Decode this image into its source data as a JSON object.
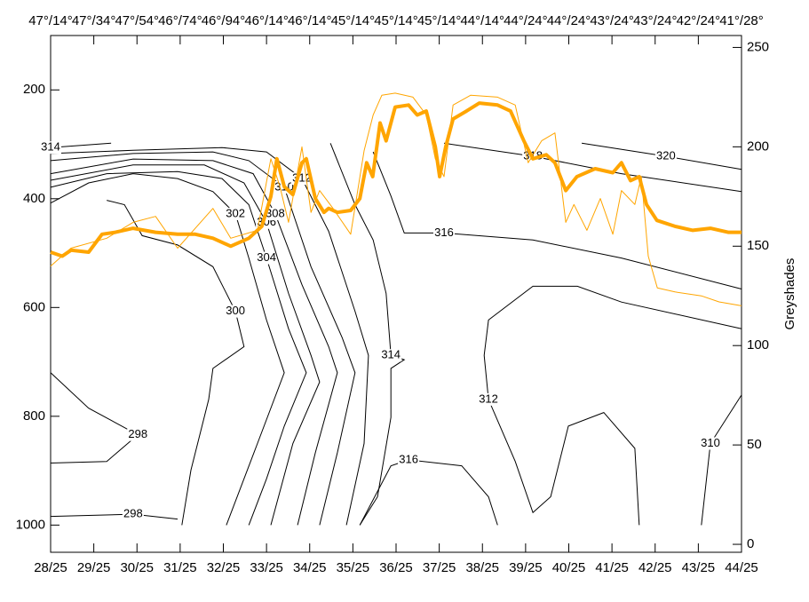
{
  "chart_data": {
    "type": "contour-line",
    "xlim": [
      28,
      44
    ],
    "xticks": [
      {
        "value": 28,
        "label": "28/25"
      },
      {
        "value": 29,
        "label": "29/25"
      },
      {
        "value": 30,
        "label": "30/25"
      },
      {
        "value": 31,
        "label": "31/25"
      },
      {
        "value": 32,
        "label": "32/25"
      },
      {
        "value": 33,
        "label": "33/25"
      },
      {
        "value": 34,
        "label": "34/25"
      },
      {
        "value": 35,
        "label": "35/25"
      },
      {
        "value": 36,
        "label": "36/25"
      },
      {
        "value": 37,
        "label": "37/25"
      },
      {
        "value": 38,
        "label": "38/25"
      },
      {
        "value": 39,
        "label": "39/25"
      },
      {
        "value": 40,
        "label": "40/25"
      },
      {
        "value": 41,
        "label": "41/25"
      },
      {
        "value": 42,
        "label": "42/25"
      },
      {
        "value": 43,
        "label": "43/25"
      },
      {
        "value": 44,
        "label": "44/25"
      }
    ],
    "x2ticks": [
      {
        "value": 28,
        "label": "47°/14°"
      },
      {
        "value": 29,
        "label": "47°/34°"
      },
      {
        "value": 30,
        "label": "47°/54°"
      },
      {
        "value": 31,
        "label": "46°/74°"
      },
      {
        "value": 32,
        "label": "46°/94°"
      },
      {
        "value": 33,
        "label": "46°/14°"
      },
      {
        "value": 34,
        "label": "46°/14°"
      },
      {
        "value": 35,
        "label": "45°/14°"
      },
      {
        "value": 36,
        "label": "45°/14°"
      },
      {
        "value": 37,
        "label": "45°/14°"
      },
      {
        "value": 38,
        "label": "44°/14°"
      },
      {
        "value": 39,
        "label": "44°/24°"
      },
      {
        "value": 40,
        "label": "44°/24°"
      },
      {
        "value": 41,
        "label": "43°/24°"
      },
      {
        "value": 42,
        "label": "43°/24°"
      },
      {
        "value": 43,
        "label": "42°/24°"
      },
      {
        "value": 44,
        "label": "41°/28°"
      }
    ],
    "ylim": [
      1050,
      100
    ],
    "yticks": [
      200,
      400,
      600,
      800,
      1000
    ],
    "y2label": "Greyshades",
    "y2lim": [
      -4,
      256
    ],
    "y2ticks": [
      0,
      50,
      100,
      150,
      200,
      250
    ],
    "contour_color": "#000000",
    "contours": [
      {
        "level": 298,
        "x": [
          28,
          28.88,
          30.02,
          29.3,
          28.0
        ],
        "y": [
          720,
          785,
          834,
          883,
          886
        ]
      },
      {
        "level": 298,
        "x": [
          28,
          29.91,
          30.94
        ],
        "y": [
          984,
          980,
          989
        ]
      },
      {
        "level": 300,
        "x": [
          29.3,
          29.71,
          30.12,
          30.94,
          31.76,
          32.28,
          32.48,
          31.76,
          31.66,
          31.25,
          31.04
        ],
        "y": [
          403,
          411,
          468,
          485,
          525,
          607,
          672,
          712,
          769,
          899,
          1000
        ]
      },
      {
        "level": 302,
        "x": [
          28,
          28.88,
          29.91,
          30.94,
          31.76,
          32.28,
          32.59,
          33.0,
          33.41,
          32.79,
          32.07
        ],
        "y": [
          408,
          371,
          354,
          363,
          387,
          428,
          509,
          623,
          720,
          850,
          1000
        ]
      },
      {
        "level": 304,
        "x": [
          28,
          29.3,
          30.94,
          31.97,
          32.59,
          33.0,
          33.51,
          33.92,
          33.41,
          33.0,
          32.59
        ],
        "y": [
          379,
          354,
          350,
          363,
          411,
          509,
          639,
          720,
          818,
          915,
          1000
        ]
      },
      {
        "level": 306,
        "x": [
          28,
          29.91,
          31.56,
          32.48,
          33.0,
          33.51,
          34.03,
          34.23,
          33.61,
          33.1
        ],
        "y": [
          366,
          338,
          338,
          371,
          444,
          574,
          688,
          737,
          850,
          1000
        ]
      },
      {
        "level": 308,
        "x": [
          28,
          29.91,
          31.76,
          32.69,
          33.2,
          33.82,
          34.44,
          34.64,
          34.13,
          33.72
        ],
        "y": [
          354,
          327,
          330,
          354,
          428,
          558,
          672,
          720,
          867,
          1000
        ]
      },
      {
        "level": 310,
        "x": [
          28,
          29.91,
          31.76,
          32.59,
          33.41,
          34.03,
          34.75,
          35.05,
          34.64,
          34.23
        ],
        "y": [
          330,
          317,
          314,
          330,
          379,
          525,
          655,
          720,
          867,
          1000
        ]
      },
      {
        "level": 312,
        "x": [
          28,
          29.91,
          31.97,
          33.0,
          33.82,
          34.44,
          35.05,
          35.36,
          35.26,
          34.85
        ],
        "y": [
          317,
          311,
          306,
          314,
          363,
          460,
          607,
          688,
          850,
          1000
        ]
      },
      {
        "level": 314,
        "x": [
          28,
          29.4
        ],
        "y": [
          306,
          298
        ]
      },
      {
        "level": 314,
        "x": [
          34.48,
          35.05,
          35.47,
          35.77,
          35.88,
          36.19,
          35.88,
          35.88,
          35.57,
          35.16
        ],
        "y": [
          298,
          411,
          476,
          574,
          688,
          696,
          712,
          802,
          948,
          1000
        ]
      },
      {
        "level": 316,
        "x": [
          35.47,
          35.88,
          36.19,
          37.11,
          39.17,
          41.22,
          44.0
        ],
        "y": [
          314,
          395,
          463,
          463,
          476,
          509,
          566
        ]
      },
      {
        "level": 316,
        "x": [
          35.16,
          35.88,
          36.29,
          37.52,
          38.14,
          38.35
        ],
        "y": [
          1000,
          891,
          880,
          891,
          948,
          1000
        ]
      },
      {
        "level": 318,
        "x": [
          37.11,
          39.17,
          41.22,
          44.0
        ],
        "y": [
          298,
          322,
          354,
          387
        ]
      },
      {
        "level": 320,
        "x": [
          40.3,
          42.25,
          44.0
        ],
        "y": [
          298,
          322,
          346
        ]
      },
      {
        "level": 312,
        "x": [
          44.0,
          41.22,
          40.2,
          39.17,
          38.14,
          38.04,
          38.14,
          38.76,
          39.17,
          39.58,
          39.99,
          40.81,
          41.53,
          41.63
        ],
        "y": [
          639,
          590,
          561,
          561,
          623,
          688,
          769,
          883,
          977,
          948,
          818,
          793,
          859,
          1000
        ]
      },
      {
        "level": 310,
        "x": [
          43.07,
          43.28,
          44.0
        ],
        "y": [
          1000,
          850,
          761
        ]
      }
    ],
    "series": [
      {
        "color": "#ffa500",
        "axis": "y2",
        "x": [
          28.0,
          28.47,
          29.3,
          29.91,
          30.43,
          30.94,
          31.76,
          32.17,
          32.79,
          33.1,
          33.31,
          33.51,
          33.82,
          34.03,
          34.23,
          34.54,
          34.95,
          35.26,
          35.47,
          35.67,
          35.98,
          36.39,
          36.7,
          36.91,
          37.11,
          37.32,
          37.73,
          38.35,
          38.76,
          39.06,
          39.37,
          39.68,
          39.93,
          40.12,
          40.42,
          40.73,
          41.02,
          41.22,
          41.53,
          41.68,
          41.84,
          42.05,
          42.46,
          43.07,
          43.48,
          44.0
        ],
        "values": [
          140,
          149,
          154,
          162,
          165,
          149,
          169,
          154,
          158,
          194,
          180,
          162,
          200,
          167,
          178,
          169,
          156,
          198,
          216,
          226,
          227,
          225,
          216,
          194,
          185,
          221,
          226,
          225,
          221,
          192,
          203,
          207,
          162,
          171,
          158,
          174,
          156,
          178,
          171,
          185,
          145,
          129,
          127,
          125,
          122,
          120
        ]
      },
      {
        "color": "#ffa500",
        "axis": "y2",
        "x": [
          28.0,
          28.27,
          28.47,
          28.88,
          29.19,
          29.5,
          29.91,
          30.43,
          30.94,
          31.35,
          31.76,
          32.17,
          32.59,
          32.89,
          33.1,
          33.24,
          33.41,
          33.61,
          33.82,
          33.92,
          34.13,
          34.33,
          34.44,
          34.64,
          34.95,
          35.16,
          35.32,
          35.46,
          35.63,
          35.77,
          35.98,
          36.29,
          36.49,
          36.7,
          36.91,
          37.01,
          37.15,
          37.32,
          37.63,
          37.93,
          38.35,
          38.65,
          38.96,
          39.17,
          39.48,
          39.68,
          39.93,
          40.19,
          40.61,
          41.02,
          41.22,
          41.43,
          41.63,
          41.8,
          42.04,
          42.46,
          42.87,
          43.28,
          43.69,
          44.0
        ],
        "values": [
          147,
          145,
          148,
          147,
          156,
          157,
          159,
          157,
          156,
          156,
          154,
          150,
          154,
          160,
          175,
          194,
          180,
          176,
          192,
          194,
          174,
          167,
          169,
          167,
          168,
          174,
          192,
          185,
          212,
          203,
          220,
          221,
          216,
          218,
          200,
          185,
          200,
          214,
          218,
          222,
          221,
          218,
          203,
          194,
          196,
          192,
          178,
          185,
          189,
          187,
          192,
          183,
          185,
          171,
          163,
          160,
          158,
          159,
          157,
          157
        ]
      }
    ]
  }
}
